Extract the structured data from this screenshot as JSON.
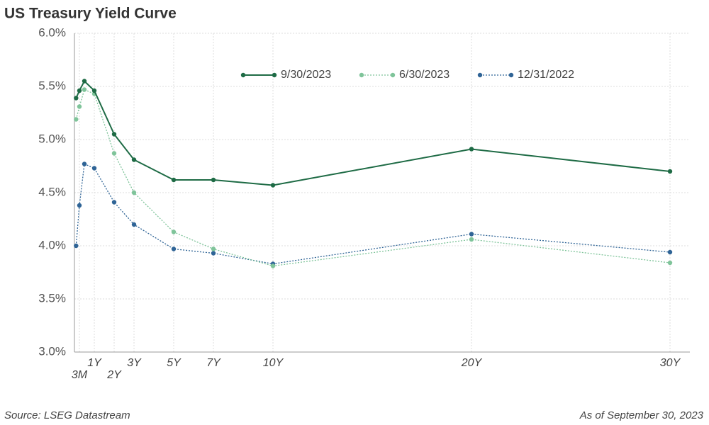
{
  "chart_data": {
    "type": "line",
    "title": "US Treasury Yield Curve",
    "source": "Source: LSEG Datastream",
    "as_of": "As of September 30, 2023",
    "x": [
      0.0833,
      0.25,
      0.5,
      1,
      2,
      3,
      5,
      7,
      10,
      20,
      30
    ],
    "xlim": [
      0,
      31
    ],
    "xticks": [
      {
        "value": 0.25,
        "label": "3M"
      },
      {
        "value": 1,
        "label": "1Y"
      },
      {
        "value": 2,
        "label": "2Y"
      },
      {
        "value": 3,
        "label": "3Y"
      },
      {
        "value": 5,
        "label": "5Y"
      },
      {
        "value": 7,
        "label": "7Y"
      },
      {
        "value": 10,
        "label": "10Y"
      },
      {
        "value": 20,
        "label": "20Y"
      },
      {
        "value": 30,
        "label": "30Y"
      }
    ],
    "ylim": [
      3,
      6
    ],
    "yticks": [
      {
        "value": 3,
        "label": "3.0%"
      },
      {
        "value": 3.5,
        "label": "3.5%"
      },
      {
        "value": 4,
        "label": "4.0%"
      },
      {
        "value": 4.5,
        "label": "4.5%"
      },
      {
        "value": 5,
        "label": "5.0%"
      },
      {
        "value": 5.5,
        "label": "5.5%"
      },
      {
        "value": 6,
        "label": "6.0%"
      }
    ],
    "grid": true,
    "legend": "top",
    "series": [
      {
        "name": "9/30/2023",
        "color": "#1e6b45",
        "style": "solid",
        "values": [
          5.39,
          5.46,
          5.55,
          5.46,
          5.05,
          4.81,
          4.62,
          4.62,
          4.57,
          4.91,
          4.7
        ]
      },
      {
        "name": "6/30/2023",
        "color": "#7fc49a",
        "style": "dotted",
        "values": [
          5.19,
          5.31,
          5.47,
          5.43,
          4.87,
          4.5,
          4.13,
          3.97,
          3.81,
          4.06,
          3.84
        ]
      },
      {
        "name": "12/31/2022",
        "color": "#2f6496",
        "style": "dotted",
        "values": [
          4.0,
          4.38,
          4.77,
          4.73,
          4.41,
          4.2,
          3.97,
          3.93,
          3.83,
          4.11,
          3.94
        ]
      }
    ]
  }
}
